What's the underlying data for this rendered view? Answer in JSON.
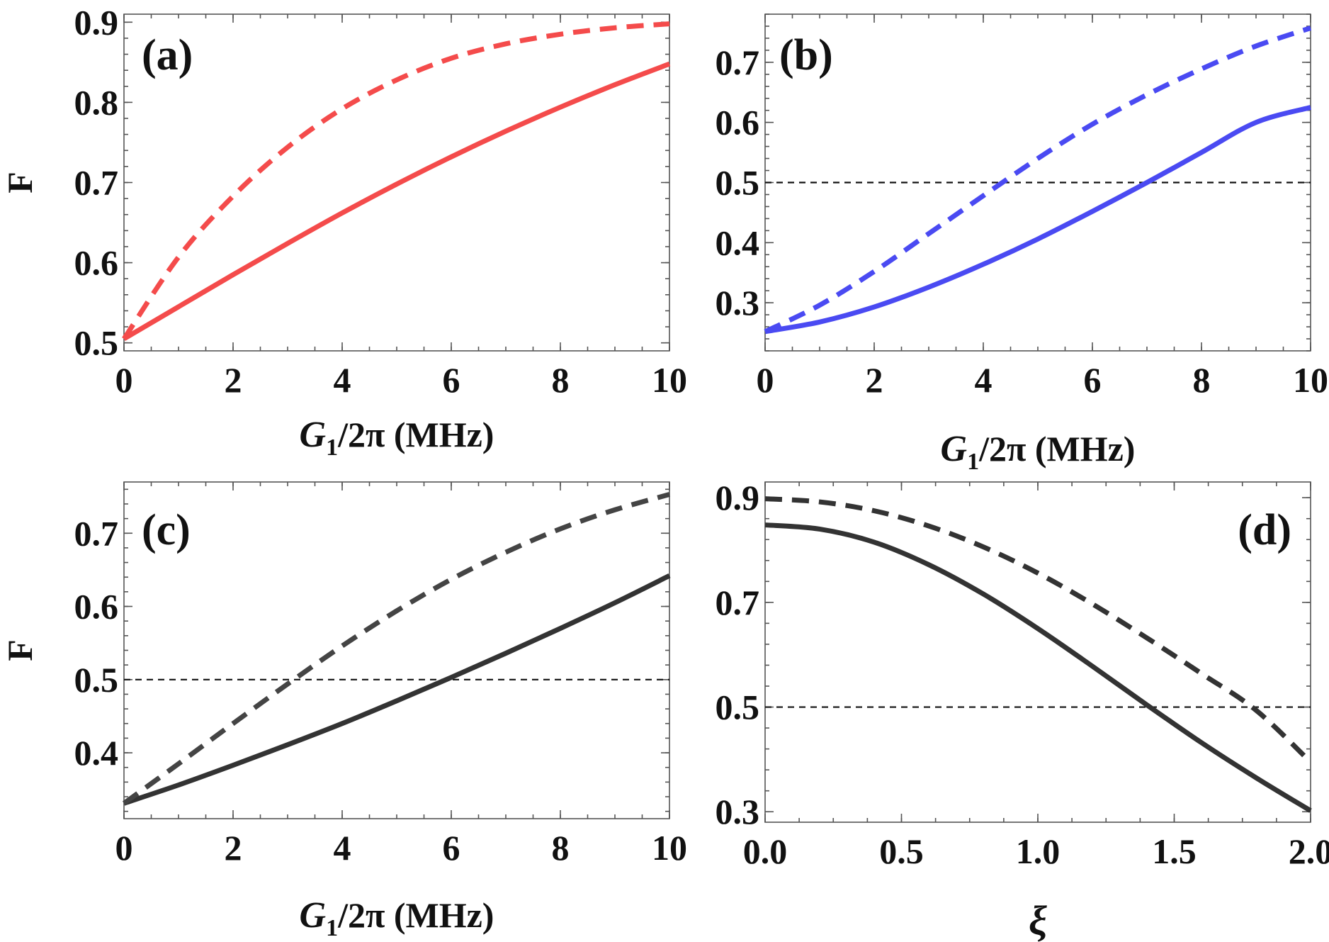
{
  "chart_data": [
    {
      "id": "a",
      "type": "line",
      "panel_label": "(a)",
      "xlabel_main": "G",
      "xlabel_sub": "1",
      "xlabel_rest": "/2π (MHz)",
      "ylabel": "F",
      "xlim": [
        0,
        10
      ],
      "ylim": [
        0.49,
        0.91
      ],
      "xticks": [
        0,
        2,
        4,
        6,
        8,
        10
      ],
      "xtick_labels": [
        "0",
        "2",
        "4",
        "6",
        "8",
        "10"
      ],
      "yticks": [
        0.5,
        0.6,
        0.7,
        0.8,
        0.9
      ],
      "ytick_labels": [
        "0.5",
        "0.6",
        "0.7",
        "0.8",
        "0.9"
      ],
      "series": [
        {
          "name": "solid",
          "style": "solid",
          "color": "#f44b4b",
          "x": [
            0,
            1,
            2,
            3,
            4,
            5,
            6,
            7,
            8,
            9,
            10
          ],
          "values": [
            0.505,
            0.545,
            0.585,
            0.624,
            0.662,
            0.698,
            0.732,
            0.764,
            0.794,
            0.822,
            0.848
          ]
        },
        {
          "name": "dashed",
          "style": "dashed",
          "color": "#f44b4b",
          "x": [
            0,
            1,
            2,
            3,
            4,
            5,
            6,
            7,
            8,
            9,
            10
          ],
          "values": [
            0.505,
            0.607,
            0.683,
            0.744,
            0.792,
            0.828,
            0.855,
            0.873,
            0.885,
            0.893,
            0.898
          ]
        }
      ],
      "hlines": []
    },
    {
      "id": "b",
      "type": "line",
      "panel_label": "(b)",
      "xlabel_main": "G",
      "xlabel_sub": "1",
      "xlabel_rest": "/2π (MHz)",
      "ylabel": "",
      "xlim": [
        0,
        10
      ],
      "ylim": [
        0.22,
        0.78
      ],
      "xticks": [
        0,
        2,
        4,
        6,
        8,
        10
      ],
      "xtick_labels": [
        "0",
        "2",
        "4",
        "6",
        "8",
        "10"
      ],
      "yticks": [
        0.3,
        0.4,
        0.5,
        0.6,
        0.7
      ],
      "ytick_labels": [
        "0.3",
        "0.4",
        "0.5",
        "0.6",
        "0.7"
      ],
      "series": [
        {
          "name": "solid",
          "style": "solid",
          "color": "#4a4af2",
          "x": [
            0,
            1,
            2,
            3,
            4,
            5,
            6,
            7,
            8,
            9,
            10
          ],
          "values": [
            0.252,
            0.268,
            0.293,
            0.326,
            0.364,
            0.406,
            0.452,
            0.5,
            0.55,
            0.6,
            0.625
          ]
        },
        {
          "name": "dashed",
          "style": "dashed",
          "color": "#4a4af2",
          "x": [
            0,
            1,
            2,
            3,
            4,
            5,
            6,
            7,
            8,
            9,
            10
          ],
          "values": [
            0.252,
            0.296,
            0.352,
            0.415,
            0.478,
            0.54,
            0.597,
            0.646,
            0.689,
            0.727,
            0.757
          ]
        }
      ],
      "hlines": [
        0.5
      ]
    },
    {
      "id": "c",
      "type": "line",
      "panel_label": "(c)",
      "xlabel_main": "G",
      "xlabel_sub": "1",
      "xlabel_rest": "/2π (MHz)",
      "ylabel": "F",
      "xlim": [
        0,
        10
      ],
      "ylim": [
        0.31,
        0.77
      ],
      "xticks": [
        0,
        2,
        4,
        6,
        8,
        10
      ],
      "xtick_labels": [
        "0",
        "2",
        "4",
        "6",
        "8",
        "10"
      ],
      "yticks": [
        0.4,
        0.5,
        0.6,
        0.7
      ],
      "ytick_labels": [
        "0.4",
        "0.5",
        "0.6",
        "0.7"
      ],
      "series": [
        {
          "name": "solid",
          "style": "solid",
          "color": "#333333",
          "x": [
            0,
            1,
            2,
            3,
            4,
            5,
            6,
            7,
            8,
            9,
            10
          ],
          "values": [
            0.331,
            0.356,
            0.383,
            0.411,
            0.44,
            0.471,
            0.503,
            0.536,
            0.57,
            0.605,
            0.642
          ]
        },
        {
          "name": "dashed",
          "style": "dashed",
          "color": "#444444",
          "x": [
            0,
            1,
            2,
            3,
            4,
            5,
            6,
            7,
            8,
            9,
            10
          ],
          "values": [
            0.331,
            0.385,
            0.44,
            0.494,
            0.546,
            0.594,
            0.637,
            0.674,
            0.706,
            0.732,
            0.753
          ]
        }
      ],
      "hlines": [
        0.5
      ]
    },
    {
      "id": "d",
      "type": "line",
      "panel_label": "(d)",
      "xlabel_main": "ξ",
      "xlabel_sub": "",
      "xlabel_rest": "",
      "ylabel": "",
      "xlim": [
        0,
        2
      ],
      "ylim": [
        0.28,
        0.93
      ],
      "xticks": [
        0,
        0.5,
        1,
        1.5,
        2
      ],
      "xtick_labels": [
        "0.0",
        "0.5",
        "1.0",
        "1.5",
        "2.0"
      ],
      "yticks": [
        0.3,
        0.5,
        0.7,
        0.9
      ],
      "ytick_labels": [
        "0.3",
        "0.5",
        "0.7",
        "0.9"
      ],
      "series": [
        {
          "name": "solid",
          "style": "solid",
          "color": "#333333",
          "x": [
            0,
            0.2,
            0.4,
            0.6,
            0.8,
            1.0,
            1.2,
            1.4,
            1.6,
            1.8,
            2.0
          ],
          "values": [
            0.848,
            0.84,
            0.815,
            0.772,
            0.716,
            0.65,
            0.578,
            0.504,
            0.432,
            0.365,
            0.302
          ]
        },
        {
          "name": "dashed",
          "style": "dashed",
          "color": "#333333",
          "x": [
            0,
            0.2,
            0.4,
            0.6,
            0.8,
            1.0,
            1.2,
            1.4,
            1.6,
            1.8,
            2.0
          ],
          "values": [
            0.898,
            0.892,
            0.875,
            0.846,
            0.806,
            0.756,
            0.697,
            0.632,
            0.564,
            0.494,
            0.395
          ]
        }
      ],
      "hlines": [
        0.5
      ]
    }
  ]
}
